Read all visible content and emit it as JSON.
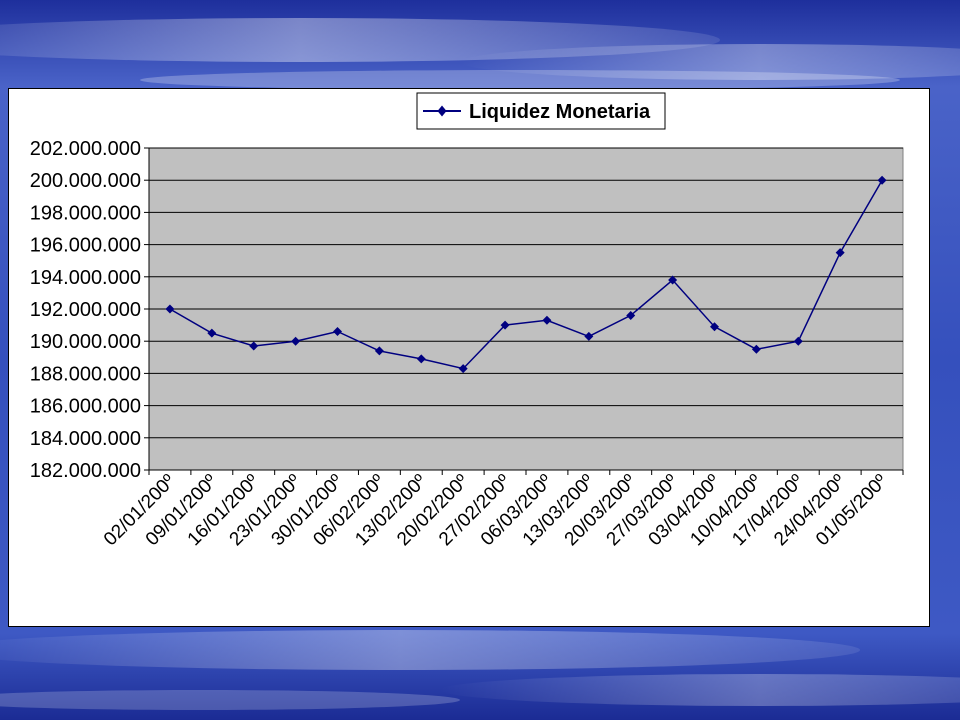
{
  "colors": {
    "series": "#000080",
    "plot_area": "#c0c0c0",
    "gridline": "#000000",
    "panel": "#ffffff"
  },
  "chart_data": {
    "type": "line",
    "title": "",
    "xlabel": "",
    "ylabel": "",
    "legend": {
      "position": "top-center",
      "marker": "diamond"
    },
    "grid": true,
    "ylim": [
      182000000,
      202000000
    ],
    "ytick_step": 2000000,
    "y_tick_labels": [
      "182.000.000",
      "184.000.000",
      "186.000.000",
      "188.000.000",
      "190.000.000",
      "192.000.000",
      "194.000.000",
      "196.000.000",
      "198.000.000",
      "200.000.000",
      "202.000.000"
    ],
    "categories": [
      "02/01/200º",
      "09/01/200º",
      "16/01/200º",
      "23/01/200º",
      "30/01/200º",
      "06/02/200º",
      "13/02/200º",
      "20/02/200º",
      "27/02/200º",
      "06/03/200º",
      "13/03/200º",
      "20/03/200º",
      "27/03/200º",
      "03/04/200º",
      "10/04/200º",
      "17/04/200º",
      "24/04/200º",
      "01/05/200º"
    ],
    "series": [
      {
        "name": "Liquidez Monetaria",
        "values": [
          192000000,
          190500000,
          189700000,
          190000000,
          190600000,
          189400000,
          188900000,
          188300000,
          191000000,
          191300000,
          190300000,
          191600000,
          193800000,
          190900000,
          189500000,
          190000000,
          195500000,
          200000000
        ]
      }
    ]
  }
}
